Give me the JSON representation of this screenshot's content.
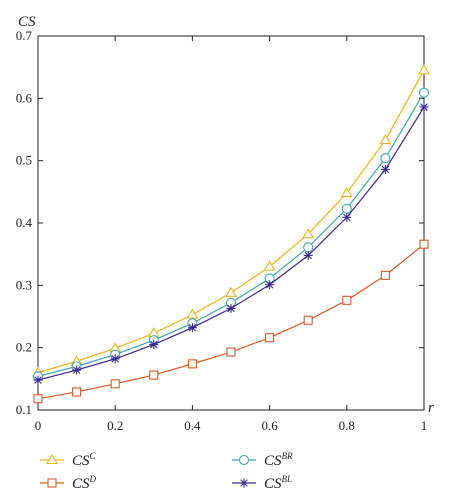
{
  "chart_data": {
    "type": "line",
    "title": "",
    "xlabel": "r",
    "ylabel": "CS",
    "xlim": [
      0,
      1
    ],
    "ylim": [
      0.1,
      0.7
    ],
    "x_ticks": [
      "0",
      "0.2",
      "0.4",
      "0.6",
      "0.8",
      "1"
    ],
    "y_ticks": [
      "0.1",
      "0.2",
      "0.3",
      "0.4",
      "0.5",
      "0.6",
      "0.7"
    ],
    "grid": false,
    "legend_position": "bottom",
    "x": [
      0,
      0.1,
      0.2,
      0.3,
      0.4,
      0.5,
      0.6,
      0.7,
      0.8,
      0.9,
      1.0
    ],
    "series": [
      {
        "name": "CS",
        "sup": "C",
        "marker": "triangle",
        "color": "#E8B422",
        "values": [
          0.16,
          0.178,
          0.199,
          0.223,
          0.253,
          0.288,
          0.33,
          0.382,
          0.448,
          0.533,
          0.645
        ]
      },
      {
        "name": "CS",
        "sup": "D",
        "marker": "square",
        "color": "#D9592A",
        "values": [
          0.118,
          0.129,
          0.142,
          0.156,
          0.174,
          0.193,
          0.216,
          0.244,
          0.276,
          0.316,
          0.366
        ]
      },
      {
        "name": "CS",
        "sup": "BR",
        "marker": "circle",
        "color": "#3FA7B0",
        "values": [
          0.154,
          0.17,
          0.189,
          0.212,
          0.239,
          0.272,
          0.311,
          0.361,
          0.423,
          0.504,
          0.609
        ]
      },
      {
        "name": "CS",
        "sup": "BL",
        "marker": "asterisk",
        "color": "#3A2A8E",
        "values": [
          0.148,
          0.164,
          0.182,
          0.205,
          0.232,
          0.263,
          0.301,
          0.348,
          0.409,
          0.486,
          0.586
        ]
      }
    ]
  }
}
